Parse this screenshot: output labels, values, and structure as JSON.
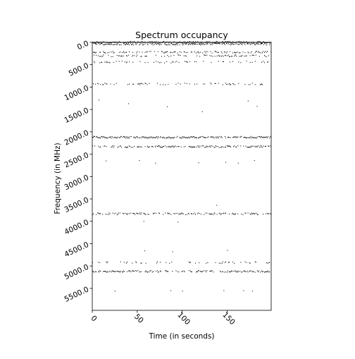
{
  "chart_data": {
    "type": "scatter",
    "title": "Spectrum occupancy",
    "xlabel": "Time (in seconds)",
    "ylabel": "Frequency (in MHz)",
    "xlim": [
      0,
      199
    ],
    "ylim": [
      5990,
      0
    ],
    "y_inverted": true,
    "grid": false,
    "x_ticks": [
      0,
      50,
      100,
      150
    ],
    "x_tick_labels": [
      "0",
      "50",
      "100",
      "150"
    ],
    "y_ticks": [
      0,
      500,
      1000,
      1500,
      2000,
      2500,
      3000,
      3500,
      4000,
      4500,
      5000,
      5500
    ],
    "y_tick_labels": [
      "0.0",
      "500.0",
      "1000.0",
      "1500.0",
      "2000.0",
      "2500.0",
      "3000.0",
      "3500.0",
      "4000.0",
      "4500.0",
      "5000.0",
      "5500.0"
    ],
    "marker_color": "#000000",
    "occupied_bands_mhz": [
      {
        "frequency": 0,
        "density": 0.95
      },
      {
        "frequency": 40,
        "density": 0.7
      },
      {
        "frequency": 220,
        "density": 0.45
      },
      {
        "frequency": 300,
        "density": 0.35
      },
      {
        "frequency": 440,
        "density": 0.25
      },
      {
        "frequency": 930,
        "density": 0.25
      },
      {
        "frequency": 2120,
        "density": 0.85
      },
      {
        "frequency": 2330,
        "density": 0.6
      },
      {
        "frequency": 3830,
        "density": 0.55
      },
      {
        "frequency": 4920,
        "density": 0.2
      },
      {
        "frequency": 5120,
        "density": 0.6
      }
    ],
    "isolated_points": [
      [
        7,
        1290
      ],
      [
        40,
        1370
      ],
      [
        83,
        1440
      ],
      [
        122,
        1550
      ],
      [
        173,
        1310
      ],
      [
        183,
        1430
      ],
      [
        15,
        2650
      ],
      [
        52,
        2640
      ],
      [
        70,
        2700
      ],
      [
        118,
        2690
      ],
      [
        148,
        2680
      ],
      [
        162,
        2700
      ],
      [
        180,
        2640
      ],
      [
        57,
        4000
      ],
      [
        138,
        3640
      ],
      [
        95,
        4020
      ],
      [
        58,
        4660
      ],
      [
        89,
        4680
      ],
      [
        150,
        4650
      ],
      [
        25,
        5560
      ],
      [
        87,
        5550
      ],
      [
        100,
        5560
      ],
      [
        146,
        5550
      ],
      [
        168,
        5550
      ],
      [
        178,
        5560
      ]
    ]
  }
}
